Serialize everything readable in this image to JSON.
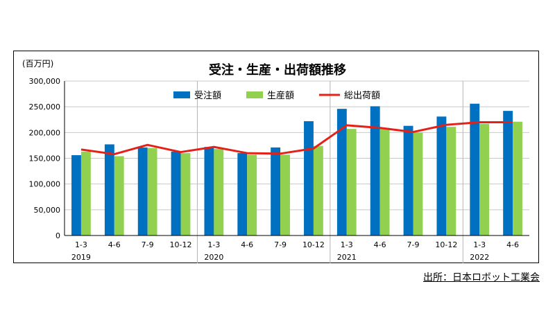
{
  "source_note": "出所：日本ロボット工業会",
  "chart_data": {
    "type": "bar",
    "title": "受注・生産・出荷額推移",
    "unit_label": "(百万円)",
    "categories": [
      "1-3",
      "4-6",
      "7-9",
      "10-12",
      "1-3",
      "4-6",
      "7-9",
      "10-12",
      "1-3",
      "4-6",
      "7-9",
      "10-12",
      "1-3",
      "4-6"
    ],
    "years": [
      {
        "label": "2019",
        "start": 0,
        "end": 3
      },
      {
        "label": "2020",
        "start": 4,
        "end": 7
      },
      {
        "label": "2021",
        "start": 8,
        "end": 11
      },
      {
        "label": "2022",
        "start": 12,
        "end": 13
      }
    ],
    "ylim": [
      0,
      300000
    ],
    "yticks": [
      0,
      50000,
      100000,
      150000,
      200000,
      250000,
      300000
    ],
    "ytick_labels": [
      "0",
      "50,000",
      "100,000",
      "150,000",
      "200,000",
      "250,000",
      "300,000"
    ],
    "grid": true,
    "legend_position": "top-center",
    "series": [
      {
        "name": "受注額",
        "type": "bar",
        "color": "#0070c0",
        "values": [
          156000,
          177000,
          171000,
          163000,
          172000,
          160000,
          171000,
          222000,
          246000,
          251000,
          213000,
          231000,
          256000,
          242000
        ]
      },
      {
        "name": "生産額",
        "type": "bar",
        "color": "#92d050",
        "values": [
          163000,
          154000,
          170000,
          160000,
          168000,
          157000,
          157000,
          174000,
          207000,
          209000,
          200000,
          211000,
          217000,
          221000
        ]
      },
      {
        "name": "総出荷額",
        "type": "line",
        "color": "#e32119",
        "values": [
          167000,
          158000,
          176000,
          162000,
          172000,
          160000,
          159000,
          169000,
          214000,
          209000,
          201000,
          215000,
          220000,
          220000
        ]
      }
    ]
  }
}
